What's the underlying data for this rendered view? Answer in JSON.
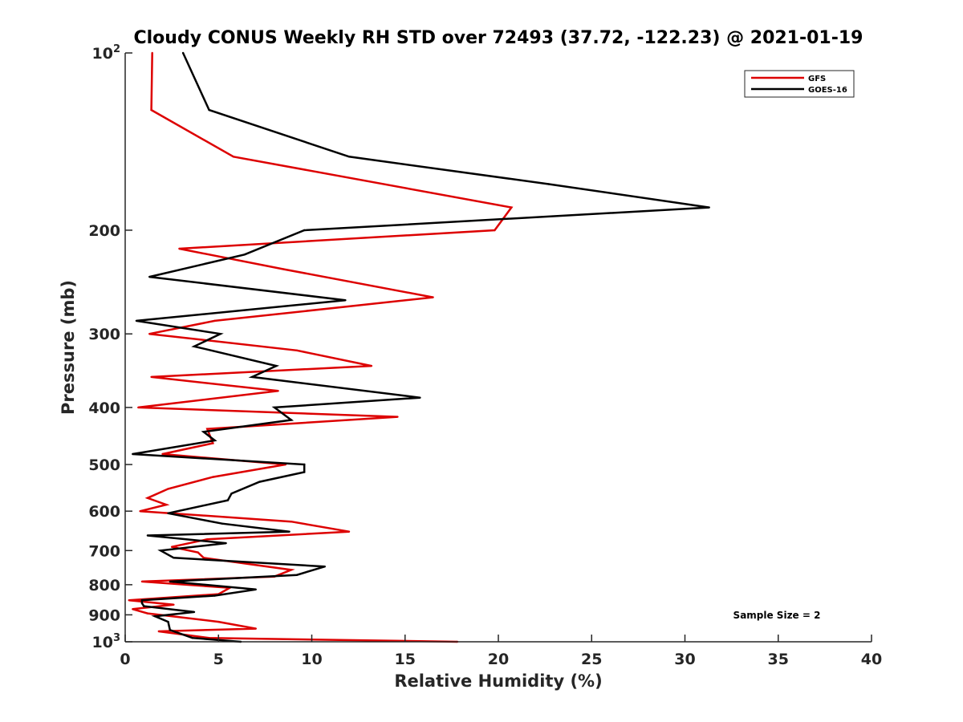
{
  "chart_data": {
    "type": "line",
    "title": "Cloudy CONUS Weekly RH STD over 72493 (37.72, -122.23) @ 2021-01-19",
    "xlabel": "Relative Humidity (%)",
    "ylabel": "Pressure (mb)",
    "xlim": [
      0,
      40
    ],
    "ylim": [
      100,
      1000
    ],
    "y_scale": "log",
    "y_reversed": true,
    "grid": false,
    "legend_position": "top-right",
    "x_ticks": [
      "0",
      "5",
      "10",
      "15",
      "20",
      "25",
      "30",
      "35",
      "40"
    ],
    "x_tick_values": [
      0,
      5,
      10,
      15,
      20,
      25,
      30,
      35,
      40
    ],
    "y_ticks": [
      {
        "value": 100,
        "base": "10",
        "exp": "2"
      },
      {
        "value": 200,
        "base": "200",
        "exp": ""
      },
      {
        "value": 300,
        "base": "300",
        "exp": ""
      },
      {
        "value": 400,
        "base": "400",
        "exp": ""
      },
      {
        "value": 500,
        "base": "500",
        "exp": ""
      },
      {
        "value": 600,
        "base": "600",
        "exp": ""
      },
      {
        "value": 700,
        "base": "700",
        "exp": ""
      },
      {
        "value": 800,
        "base": "800",
        "exp": ""
      },
      {
        "value": 900,
        "base": "900",
        "exp": ""
      },
      {
        "value": 1000,
        "base": "10",
        "exp": "3"
      }
    ],
    "annotation": "Sample Size = 2",
    "series": [
      {
        "name": "GFS",
        "color": "#dd0000",
        "points": [
          [
            1.45,
            100
          ],
          [
            1.4,
            125
          ],
          [
            5.8,
            150
          ],
          [
            20.7,
            183
          ],
          [
            19.8,
            200
          ],
          [
            2.9,
            215
          ],
          [
            8.5,
            233
          ],
          [
            16.5,
            260
          ],
          [
            4.8,
            285
          ],
          [
            1.3,
            300
          ],
          [
            9.2,
            320
          ],
          [
            13.2,
            340
          ],
          [
            1.4,
            355
          ],
          [
            8.2,
            375
          ],
          [
            0.7,
            400
          ],
          [
            14.6,
            415
          ],
          [
            4.4,
            435
          ],
          [
            4.7,
            460
          ],
          [
            2.0,
            480
          ],
          [
            8.6,
            500
          ],
          [
            4.7,
            525
          ],
          [
            2.3,
            550
          ],
          [
            1.2,
            570
          ],
          [
            2.2,
            585
          ],
          [
            0.8,
            600
          ],
          [
            8.9,
            625
          ],
          [
            12.0,
            650
          ],
          [
            4.4,
            670
          ],
          [
            2.5,
            690
          ],
          [
            3.9,
            705
          ],
          [
            4.2,
            720
          ],
          [
            8.9,
            755
          ],
          [
            8.0,
            775
          ],
          [
            0.9,
            790
          ],
          [
            5.6,
            810
          ],
          [
            5.0,
            830
          ],
          [
            0.2,
            850
          ],
          [
            2.6,
            865
          ],
          [
            0.4,
            880
          ],
          [
            1.2,
            895
          ],
          [
            5.0,
            925
          ],
          [
            7.0,
            950
          ],
          [
            1.8,
            960
          ],
          [
            4.5,
            985
          ],
          [
            17.8,
            1000
          ]
        ]
      },
      {
        "name": "GOES-16",
        "color": "#000000",
        "points": [
          [
            3.1,
            100
          ],
          [
            4.5,
            125
          ],
          [
            12.0,
            150
          ],
          [
            22.7,
            167
          ],
          [
            31.3,
            183
          ],
          [
            9.6,
            200
          ],
          [
            6.4,
            220
          ],
          [
            1.3,
            240
          ],
          [
            11.8,
            263
          ],
          [
            0.6,
            285
          ],
          [
            5.1,
            300
          ],
          [
            3.7,
            315
          ],
          [
            8.1,
            340
          ],
          [
            6.8,
            355
          ],
          [
            15.8,
            385
          ],
          [
            8.0,
            400
          ],
          [
            8.9,
            420
          ],
          [
            4.2,
            440
          ],
          [
            4.8,
            455
          ],
          [
            0.4,
            480
          ],
          [
            9.6,
            500
          ],
          [
            9.6,
            515
          ],
          [
            7.2,
            535
          ],
          [
            5.7,
            560
          ],
          [
            5.5,
            575
          ],
          [
            2.3,
            605
          ],
          [
            5.2,
            630
          ],
          [
            8.8,
            650
          ],
          [
            1.2,
            660
          ],
          [
            5.4,
            680
          ],
          [
            1.9,
            700
          ],
          [
            2.6,
            720
          ],
          [
            10.7,
            745
          ],
          [
            9.2,
            770
          ],
          [
            2.4,
            790
          ],
          [
            7.0,
            815
          ],
          [
            4.8,
            835
          ],
          [
            0.9,
            850
          ],
          [
            0.9,
            860
          ],
          [
            1.0,
            870
          ],
          [
            3.7,
            890
          ],
          [
            1.6,
            905
          ],
          [
            2.3,
            925
          ],
          [
            2.4,
            955
          ],
          [
            3.6,
            985
          ],
          [
            6.2,
            1000
          ]
        ]
      }
    ]
  }
}
